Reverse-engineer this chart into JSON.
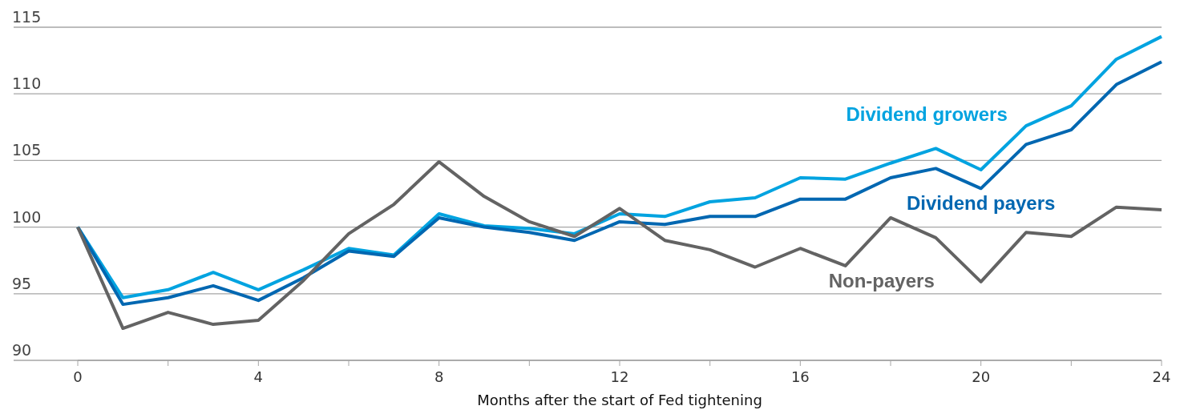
{
  "chart_data": {
    "type": "line",
    "xlabel": "Months after the start of Fed tightening",
    "x": [
      0,
      1,
      2,
      3,
      4,
      5,
      6,
      7,
      8,
      9,
      10,
      11,
      12,
      13,
      14,
      15,
      16,
      17,
      18,
      19,
      20,
      21,
      22,
      23,
      24
    ],
    "series": [
      {
        "name": "Dividend growers",
        "color": "#00a3e0",
        "values": [
          100,
          94.7,
          95.3,
          96.6,
          95.3,
          96.8,
          98.4,
          97.9,
          101.0,
          100.1,
          99.9,
          99.5,
          101.0,
          100.8,
          101.9,
          102.2,
          103.7,
          103.6,
          104.8,
          105.9,
          104.3,
          107.6,
          109.1,
          112.6,
          114.3
        ]
      },
      {
        "name": "Dividend payers",
        "color": "#0067b1",
        "values": [
          100,
          94.2,
          94.7,
          95.6,
          94.5,
          96.2,
          98.2,
          97.8,
          100.7,
          100.0,
          99.6,
          99.0,
          100.4,
          100.2,
          100.8,
          100.8,
          102.1,
          102.1,
          103.7,
          104.4,
          102.9,
          106.2,
          107.3,
          110.7,
          112.4
        ]
      },
      {
        "name": "Non-payers",
        "color": "#636363",
        "values": [
          100,
          92.4,
          93.6,
          92.7,
          93.0,
          96.0,
          99.5,
          101.7,
          104.9,
          102.3,
          100.4,
          99.3,
          101.4,
          99.0,
          98.3,
          97.0,
          98.4,
          97.1,
          100.7,
          99.2,
          95.9,
          99.6,
          99.3,
          101.5,
          101.3
        ]
      }
    ],
    "xlim": [
      0,
      24
    ],
    "xticks": [
      0,
      {
        "value": 2,
        "label": null
      },
      4,
      {
        "value": 6,
        "label": null
      },
      8,
      {
        "value": 10,
        "label": null
      },
      12,
      {
        "value": 14,
        "label": null
      },
      16,
      {
        "value": 18,
        "label": null
      },
      20,
      {
        "value": 22,
        "label": null
      },
      24
    ],
    "ylim": [
      90,
      115
    ],
    "yticks": [
      90,
      95,
      100,
      105,
      110,
      115
    ],
    "grid": "y",
    "marker": "none",
    "line_style": "solid"
  }
}
